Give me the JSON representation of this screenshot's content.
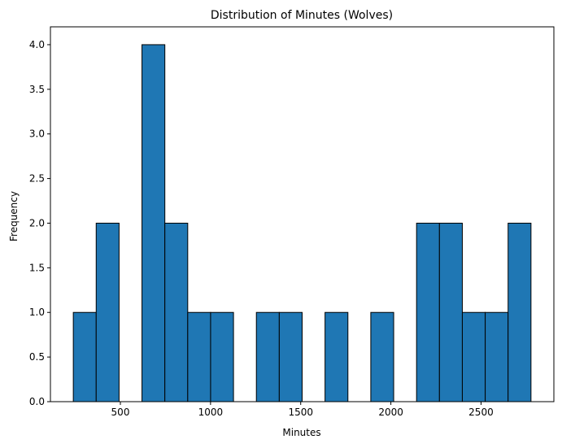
{
  "chart_data": {
    "type": "bar",
    "subtype": "histogram",
    "title": "Distribution of Minutes (Wolves)",
    "xlabel": "Minutes",
    "ylabel": "Frequency",
    "bins": [
      {
        "x0": 239.0,
        "x1": 365.9,
        "count": 1
      },
      {
        "x0": 365.9,
        "x1": 492.8,
        "count": 2
      },
      {
        "x0": 492.8,
        "x1": 619.7,
        "count": 0
      },
      {
        "x0": 619.7,
        "x1": 746.6,
        "count": 4
      },
      {
        "x0": 746.6,
        "x1": 873.5,
        "count": 2
      },
      {
        "x0": 873.5,
        "x1": 1000.4,
        "count": 1
      },
      {
        "x0": 1000.4,
        "x1": 1127.3,
        "count": 1
      },
      {
        "x0": 1127.3,
        "x1": 1254.2,
        "count": 0
      },
      {
        "x0": 1254.2,
        "x1": 1381.1,
        "count": 1
      },
      {
        "x0": 1381.1,
        "x1": 1508.0,
        "count": 1
      },
      {
        "x0": 1508.0,
        "x1": 1634.9,
        "count": 0
      },
      {
        "x0": 1634.9,
        "x1": 1761.8,
        "count": 1
      },
      {
        "x0": 1761.8,
        "x1": 1888.7,
        "count": 0
      },
      {
        "x0": 1888.7,
        "x1": 2015.6,
        "count": 1
      },
      {
        "x0": 2015.6,
        "x1": 2142.5,
        "count": 0
      },
      {
        "x0": 2142.5,
        "x1": 2269.4,
        "count": 2
      },
      {
        "x0": 2269.4,
        "x1": 2396.3,
        "count": 2
      },
      {
        "x0": 2396.3,
        "x1": 2523.2,
        "count": 1
      },
      {
        "x0": 2523.2,
        "x1": 2650.1,
        "count": 1
      },
      {
        "x0": 2650.1,
        "x1": 2777.0,
        "count": 2
      }
    ],
    "xlim": [
      112.1,
      2903.9
    ],
    "ylim": [
      0,
      4.2
    ],
    "xticks": [
      500,
      1000,
      1500,
      2000,
      2500
    ],
    "xtick_labels": [
      "500",
      "1000",
      "1500",
      "2000",
      "2500"
    ],
    "yticks": [
      0,
      0.5,
      1.0,
      1.5,
      2.0,
      2.5,
      3.0,
      3.5,
      4.0
    ],
    "ytick_labels": [
      "0.0",
      "0.5",
      "1.0",
      "1.5",
      "2.0",
      "2.5",
      "3.0",
      "3.5",
      "4.0"
    ],
    "bar_color": "#1f77b4",
    "edge_color": "#000000",
    "grid": false,
    "legend": "none"
  }
}
